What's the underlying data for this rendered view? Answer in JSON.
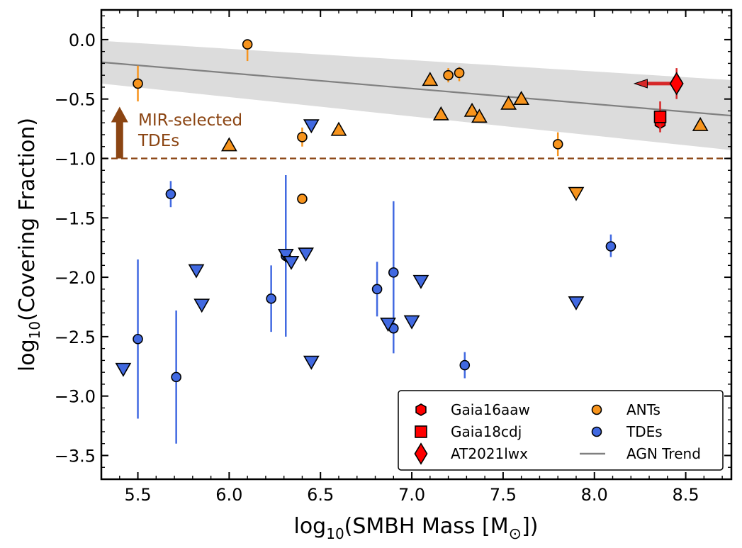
{
  "chart_data": {
    "type": "scatter",
    "xlabel_main": "log",
    "xlabel_sub": "10",
    "xlabel_rest": "(SMBH Mass [M",
    "xlabel_sym": "⊙",
    "xlabel_end": "])",
    "ylabel_main": "log",
    "ylabel_sub": "10",
    "ylabel_rest": "(Covering Fraction)",
    "xlim": [
      5.3,
      8.75
    ],
    "ylim": [
      -3.7,
      0.25
    ],
    "xticks": [
      5.5,
      6.0,
      6.5,
      7.0,
      7.5,
      8.0,
      8.5
    ],
    "yticks": [
      0.0,
      -0.5,
      -1.0,
      -1.5,
      -2.0,
      -2.5,
      -3.0,
      -3.5
    ],
    "tick_labels_x": [
      "5.5",
      "6.0",
      "6.5",
      "7.0",
      "7.5",
      "8.0",
      "8.5"
    ],
    "tick_labels_y": [
      "0.0",
      "−0.5",
      "−1.0",
      "−1.5",
      "−2.0",
      "−2.5",
      "−3.0",
      "−3.5"
    ],
    "threshold_line": {
      "y": -1.0,
      "color": "#8b4513"
    },
    "mir_annotation": {
      "line1": "MIR-selected",
      "line2": "TDEs",
      "x": 5.4,
      "y_from": -1.0,
      "y_to": -0.6,
      "color": "#8b4513"
    },
    "agn_trend": {
      "x": [
        5.3,
        8.75
      ],
      "y": [
        -0.19,
        -0.64
      ],
      "band_upper": [
        -0.01,
        -0.34
      ],
      "band_lower": [
        -0.37,
        -0.93
      ],
      "color": "#808080",
      "band_color": "#dcdcdc"
    },
    "series": [
      {
        "name": "ANTs",
        "marker": "circle",
        "color": "#f7941d",
        "points": [
          {
            "x": 5.5,
            "y": -0.37,
            "lo": -0.52,
            "hi": -0.22
          },
          {
            "x": 6.1,
            "y": -0.04,
            "lo": -0.18,
            "hi": -0.04
          },
          {
            "x": 6.4,
            "y": -0.82,
            "lo": -0.9,
            "hi": -0.74
          },
          {
            "x": 6.4,
            "y": -1.34,
            "lo": -1.34,
            "hi": -1.34
          },
          {
            "x": 7.2,
            "y": -0.3,
            "lo": -0.36,
            "hi": -0.24
          },
          {
            "x": 7.26,
            "y": -0.28,
            "lo": -0.35,
            "hi": -0.23
          },
          {
            "x": 7.8,
            "y": -0.88,
            "lo": -0.98,
            "hi": -0.78
          }
        ]
      },
      {
        "name": "ANTs (lower limits)",
        "marker": "triangle-up",
        "color": "#f7941d",
        "points": [
          {
            "x": 6.0,
            "y": -0.89
          },
          {
            "x": 6.6,
            "y": -0.76
          },
          {
            "x": 7.1,
            "y": -0.34
          },
          {
            "x": 7.16,
            "y": -0.63
          },
          {
            "x": 7.33,
            "y": -0.6
          },
          {
            "x": 7.37,
            "y": -0.65
          },
          {
            "x": 7.53,
            "y": -0.54
          },
          {
            "x": 7.6,
            "y": -0.5
          },
          {
            "x": 8.58,
            "y": -0.72
          }
        ]
      },
      {
        "name": "ANTs (upper limits)",
        "marker": "triangle-down",
        "color": "#f7941d",
        "points": [
          {
            "x": 7.9,
            "y": -1.29
          }
        ]
      },
      {
        "name": "TDEs",
        "marker": "circle",
        "color": "#4169e1",
        "points": [
          {
            "x": 5.5,
            "y": -2.52,
            "lo": -3.19,
            "hi": -1.85
          },
          {
            "x": 5.68,
            "y": -1.3,
            "lo": -1.41,
            "hi": -1.19
          },
          {
            "x": 5.71,
            "y": -2.84,
            "lo": -3.4,
            "hi": -2.28
          },
          {
            "x": 6.23,
            "y": -2.18,
            "lo": -2.46,
            "hi": -1.9
          },
          {
            "x": 6.31,
            "y": -1.82,
            "lo": -2.5,
            "hi": -1.14
          },
          {
            "x": 6.81,
            "y": -2.1,
            "lo": -2.33,
            "hi": -1.87
          },
          {
            "x": 6.9,
            "y": -1.96,
            "lo": -2.64,
            "hi": -1.36
          },
          {
            "x": 6.9,
            "y": -2.43,
            "lo": -2.43,
            "hi": -2.43
          },
          {
            "x": 7.29,
            "y": -2.74,
            "lo": -2.85,
            "hi": -2.63
          },
          {
            "x": 8.09,
            "y": -1.74,
            "lo": -1.83,
            "hi": -1.64
          }
        ]
      },
      {
        "name": "TDEs (upper limits)",
        "marker": "triangle-down",
        "color": "#4169e1",
        "points": [
          {
            "x": 5.42,
            "y": -2.77
          },
          {
            "x": 5.82,
            "y": -1.94
          },
          {
            "x": 5.85,
            "y": -2.23
          },
          {
            "x": 6.31,
            "y": -1.81
          },
          {
            "x": 6.34,
            "y": -1.87
          },
          {
            "x": 6.42,
            "y": -1.8
          },
          {
            "x": 6.45,
            "y": -0.72
          },
          {
            "x": 6.45,
            "y": -2.71
          },
          {
            "x": 6.87,
            "y": -2.39
          },
          {
            "x": 7.0,
            "y": -2.37
          },
          {
            "x": 7.05,
            "y": -2.03
          },
          {
            "x": 7.9,
            "y": -2.21
          }
        ]
      },
      {
        "name": "Gaia16aaw",
        "marker": "hexagon",
        "color": "#ff0000",
        "points": [
          {
            "x": 8.36,
            "y": -0.7,
            "lo": -0.78,
            "hi": -0.62
          }
        ]
      },
      {
        "name": "Gaia18cdj",
        "marker": "square",
        "color": "#ff0000",
        "points": [
          {
            "x": 8.36,
            "y": -0.65,
            "lo": -0.76,
            "hi": -0.52
          }
        ]
      },
      {
        "name": "AT2021lwx",
        "marker": "diamond",
        "color": "#ff0000",
        "points": [
          {
            "x": 8.45,
            "y": -0.37,
            "lo": -0.5,
            "hi": -0.24,
            "xlimit_to": 8.22
          }
        ]
      }
    ],
    "legend": {
      "position": "lower-right",
      "entries": [
        {
          "label": "Gaia16aaw",
          "marker": "hexagon",
          "color": "#ff0000"
        },
        {
          "label": "ANTs",
          "marker": "circle",
          "color": "#f7941d"
        },
        {
          "label": "Gaia18cdj",
          "marker": "square",
          "color": "#ff0000"
        },
        {
          "label": "TDEs",
          "marker": "circle",
          "color": "#4169e1"
        },
        {
          "label": "AT2021lwx",
          "marker": "diamond",
          "color": "#ff0000"
        },
        {
          "label": "AGN Trend",
          "marker": "line",
          "color": "#808080"
        }
      ]
    }
  }
}
